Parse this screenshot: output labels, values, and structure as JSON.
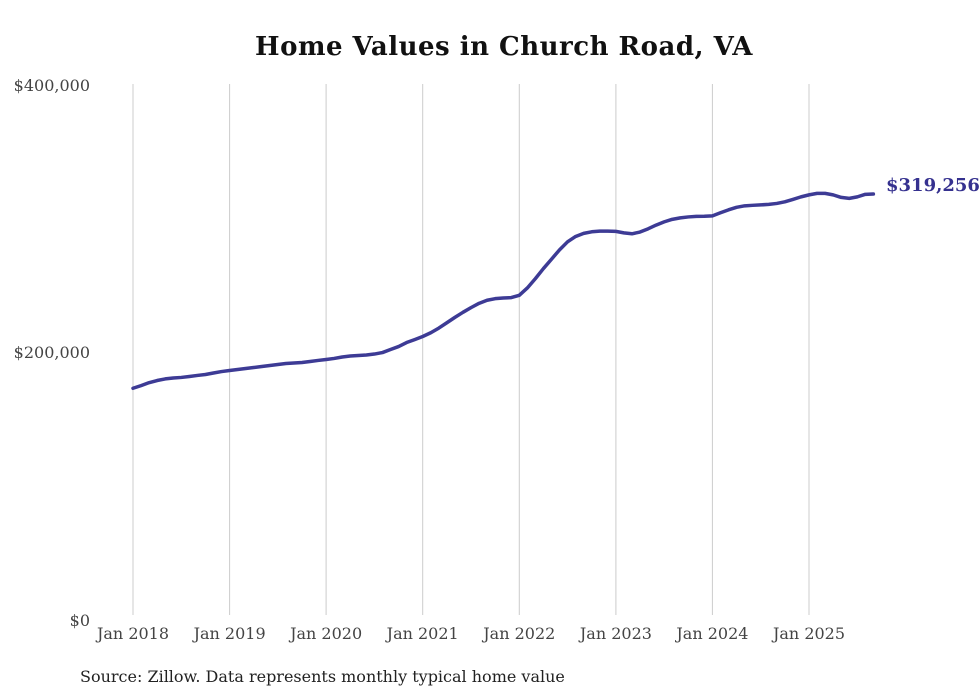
{
  "page": {
    "background": "#ffffff"
  },
  "chart": {
    "title": "Home Values in Church Road, VA",
    "end_label": "$319,256",
    "source": "Source: Zillow. Data represents monthly typical home value"
  },
  "chart_data": {
    "type": "line",
    "title": "Home Values in Church Road, VA",
    "series_name": "Monthly typical home value",
    "period": {
      "start": "Jan 2018",
      "end": "Sep 2025",
      "interval": "monthly"
    },
    "x_tick_labels": [
      "Jan 2018",
      "Jan 2019",
      "Jan 2020",
      "Jan 2021",
      "Jan 2022",
      "Jan 2023",
      "Jan 2024",
      "Jan 2025"
    ],
    "y_ticks": [
      {
        "value": 0,
        "label": "$0"
      },
      {
        "value": 200000,
        "label": "$200,000"
      },
      {
        "value": 400000,
        "label": "$400,000"
      }
    ],
    "ylim": [
      0,
      400000
    ],
    "grid": "vertical-only",
    "legend": "none",
    "final_value": 319256,
    "final_value_label": "$319,256",
    "line_color": "#3d3b95",
    "label_color": "#35318f",
    "grid_color": "#cccccc",
    "tick_color": "#444444",
    "title_color": "#111111",
    "values": [
      174000,
      176000,
      178200,
      179800,
      181000,
      181700,
      182100,
      182800,
      183600,
      184300,
      185400,
      186500,
      187300,
      188000,
      188800,
      189500,
      190300,
      191000,
      191800,
      192500,
      192900,
      193300,
      194000,
      194800,
      195500,
      196300,
      197400,
      198100,
      198500,
      198900,
      199600,
      200700,
      203000,
      205200,
      208200,
      210400,
      212700,
      215500,
      219000,
      223000,
      227000,
      230800,
      234300,
      237500,
      239800,
      241000,
      241500,
      241800,
      243500,
      249000,
      256000,
      263500,
      270500,
      277500,
      283500,
      287500,
      289800,
      291000,
      291500,
      291500,
      291300,
      290200,
      289500,
      290800,
      293200,
      296000,
      298400,
      300300,
      301400,
      302100,
      302500,
      302600,
      302900,
      305200,
      307400,
      309300,
      310400,
      310800,
      311100,
      311500,
      312200,
      313400,
      315200,
      317100,
      318600,
      319700,
      319700,
      318600,
      316700,
      316000,
      317100,
      319000,
      319256
    ]
  }
}
